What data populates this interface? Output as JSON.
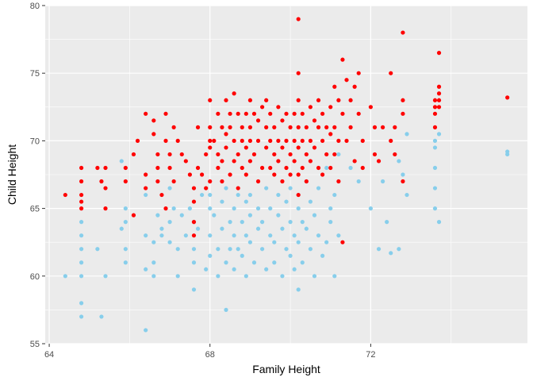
{
  "chart_data": {
    "type": "scatter",
    "xlabel": "Family Height",
    "ylabel": "Child Height",
    "xlim": [
      63.9,
      75.9
    ],
    "ylim": [
      55,
      80
    ],
    "xticks": [
      64,
      68,
      72
    ],
    "yticks": [
      55,
      60,
      65,
      70,
      75,
      80
    ],
    "xtick_labels": [
      "64",
      "68",
      "72"
    ],
    "ytick_labels": [
      "55",
      "60",
      "65",
      "70",
      "75",
      "80"
    ],
    "grid": true,
    "legend": "none",
    "colors": {
      "panel_background": "#ebebeb",
      "grid_line": "#ffffff",
      "series_a": "#87ceeb",
      "series_b": "#ff0000"
    },
    "series": [
      {
        "color": "#87ceeb",
        "points": [
          [
            64.4,
            60
          ],
          [
            64.8,
            58
          ],
          [
            64.8,
            57
          ],
          [
            64.8,
            62
          ],
          [
            64.8,
            61
          ],
          [
            64.8,
            60
          ],
          [
            64.8,
            64
          ],
          [
            64.8,
            63
          ],
          [
            65.2,
            62
          ],
          [
            65.3,
            57
          ],
          [
            65.4,
            60
          ],
          [
            65.8,
            63.5
          ],
          [
            65.8,
            68.5
          ],
          [
            65.9,
            65
          ],
          [
            65.9,
            64
          ],
          [
            65.9,
            62
          ],
          [
            65.9,
            61
          ],
          [
            66.4,
            56
          ],
          [
            66.4,
            66
          ],
          [
            66.4,
            63
          ],
          [
            66.4,
            60.5
          ],
          [
            66.6,
            61
          ],
          [
            66.6,
            60
          ],
          [
            66.6,
            62.5
          ],
          [
            66.7,
            64.5
          ],
          [
            66.8,
            63.5
          ],
          [
            66.8,
            63
          ],
          [
            67,
            64
          ],
          [
            67,
            62.5
          ],
          [
            67,
            66.5
          ],
          [
            67.1,
            65
          ],
          [
            67.2,
            62
          ],
          [
            67.2,
            60
          ],
          [
            67.3,
            64.5
          ],
          [
            67.4,
            63
          ],
          [
            67.5,
            65
          ],
          [
            67.6,
            62
          ],
          [
            67.6,
            64
          ],
          [
            67.6,
            61
          ],
          [
            67.6,
            59
          ],
          [
            67.7,
            63.5
          ],
          [
            67.8,
            66
          ],
          [
            67.9,
            60.5
          ],
          [
            68,
            65
          ],
          [
            68,
            63
          ],
          [
            68,
            61.5
          ],
          [
            68,
            66
          ],
          [
            68.1,
            64.5
          ],
          [
            68.2,
            60
          ],
          [
            68.2,
            62
          ],
          [
            68.3,
            63.5
          ],
          [
            68.3,
            65.5
          ],
          [
            68.4,
            61
          ],
          [
            68.4,
            66.5
          ],
          [
            68.4,
            57.5
          ],
          [
            68.5,
            64
          ],
          [
            68.5,
            62
          ],
          [
            68.6,
            63
          ],
          [
            68.6,
            65
          ],
          [
            68.6,
            60.5
          ],
          [
            68.7,
            66
          ],
          [
            68.7,
            62
          ],
          [
            68.8,
            64
          ],
          [
            68.8,
            61.5
          ],
          [
            68.9,
            65.5
          ],
          [
            68.9,
            63
          ],
          [
            68.9,
            60
          ],
          [
            69,
            64.5
          ],
          [
            69,
            62.5
          ],
          [
            69,
            66
          ],
          [
            69.1,
            61
          ],
          [
            69.2,
            63.5
          ],
          [
            69.2,
            65
          ],
          [
            69.3,
            62
          ],
          [
            69.3,
            64
          ],
          [
            69.4,
            66.5
          ],
          [
            69.4,
            60.5
          ],
          [
            69.5,
            63
          ],
          [
            69.5,
            65
          ],
          [
            69.6,
            62.5
          ],
          [
            69.6,
            61
          ],
          [
            69.7,
            64.5
          ],
          [
            69.7,
            66
          ],
          [
            69.8,
            63.5
          ],
          [
            69.8,
            60
          ],
          [
            69.9,
            65.5
          ],
          [
            69.9,
            62
          ],
          [
            70,
            64
          ],
          [
            70,
            61.5
          ],
          [
            70,
            66.5
          ],
          [
            70.1,
            63
          ],
          [
            70.1,
            60.5
          ],
          [
            70.2,
            62.5
          ],
          [
            70.2,
            65
          ],
          [
            70.2,
            59
          ],
          [
            70.2,
            66
          ],
          [
            70.3,
            61
          ],
          [
            70.3,
            64
          ],
          [
            70.4,
            63.5
          ],
          [
            70.4,
            67
          ],
          [
            70.5,
            62
          ],
          [
            70.5,
            65.5
          ],
          [
            70.6,
            60
          ],
          [
            70.6,
            64.5
          ],
          [
            70.7,
            66.5
          ],
          [
            70.7,
            63
          ],
          [
            70.8,
            61.5
          ],
          [
            70.9,
            62.5
          ],
          [
            70.9,
            68
          ],
          [
            71,
            65
          ],
          [
            71,
            64
          ],
          [
            71.1,
            60
          ],
          [
            71.1,
            66
          ],
          [
            71.2,
            63
          ],
          [
            71.2,
            69
          ],
          [
            71.5,
            68
          ],
          [
            71.7,
            67
          ],
          [
            72,
            65
          ],
          [
            72.2,
            62
          ],
          [
            72.3,
            67
          ],
          [
            72.4,
            64
          ],
          [
            72.5,
            61.7
          ],
          [
            72.7,
            62
          ],
          [
            72.7,
            68.5
          ],
          [
            72.8,
            67.5
          ],
          [
            72.9,
            70.5
          ],
          [
            72.9,
            66
          ],
          [
            73.6,
            66.5
          ],
          [
            73.6,
            68
          ],
          [
            73.6,
            70
          ],
          [
            73.6,
            65
          ],
          [
            73.6,
            69.5
          ],
          [
            73.7,
            64
          ],
          [
            73.7,
            70.5
          ],
          [
            75.4,
            69
          ],
          [
            75.4,
            69.2
          ]
        ]
      },
      {
        "color": "#ff0000",
        "points": [
          [
            64.4,
            66
          ],
          [
            64.8,
            68
          ],
          [
            64.8,
            67
          ],
          [
            64.8,
            66
          ],
          [
            64.8,
            65.5
          ],
          [
            64.8,
            65
          ],
          [
            65.2,
            68
          ],
          [
            65.3,
            67
          ],
          [
            65.4,
            66.5
          ],
          [
            65.4,
            68
          ],
          [
            65.4,
            65
          ],
          [
            65.9,
            68
          ],
          [
            65.9,
            67
          ],
          [
            66.1,
            69
          ],
          [
            66.1,
            64.5
          ],
          [
            66.2,
            70
          ],
          [
            66.4,
            72
          ],
          [
            66.4,
            67.5
          ],
          [
            66.4,
            66.5
          ],
          [
            66.6,
            71.5
          ],
          [
            66.6,
            70.5
          ],
          [
            66.7,
            69
          ],
          [
            66.7,
            68
          ],
          [
            66.7,
            67
          ],
          [
            66.8,
            66
          ],
          [
            66.9,
            72
          ],
          [
            66.9,
            70
          ],
          [
            66.9,
            65
          ],
          [
            67,
            69
          ],
          [
            67,
            68
          ],
          [
            67.1,
            71
          ],
          [
            67.1,
            67
          ],
          [
            67.2,
            70
          ],
          [
            67.3,
            69
          ],
          [
            67.4,
            68.5
          ],
          [
            67.5,
            67.5
          ],
          [
            67.6,
            64
          ],
          [
            67.6,
            66.5
          ],
          [
            67.6,
            65.5
          ],
          [
            67.6,
            63
          ],
          [
            67.7,
            71
          ],
          [
            67.7,
            68
          ],
          [
            67.8,
            67.5
          ],
          [
            67.9,
            69
          ],
          [
            67.9,
            66.5
          ],
          [
            68,
            73
          ],
          [
            68,
            71
          ],
          [
            68,
            70
          ],
          [
            68,
            69.5
          ],
          [
            68,
            67
          ],
          [
            68.1,
            70
          ],
          [
            68.2,
            72
          ],
          [
            68.2,
            69
          ],
          [
            68.2,
            68
          ],
          [
            68.3,
            71
          ],
          [
            68.3,
            68.5
          ],
          [
            68.3,
            67
          ],
          [
            68.4,
            73
          ],
          [
            68.4,
            70.5
          ],
          [
            68.4,
            69.5
          ],
          [
            68.5,
            72
          ],
          [
            68.5,
            71
          ],
          [
            68.5,
            67.5
          ],
          [
            68.6,
            73.5
          ],
          [
            68.6,
            70
          ],
          [
            68.6,
            68.5
          ],
          [
            68.7,
            72
          ],
          [
            68.7,
            69
          ],
          [
            68.7,
            66.5
          ],
          [
            68.8,
            71
          ],
          [
            68.8,
            70
          ],
          [
            68.8,
            68
          ],
          [
            68.9,
            72
          ],
          [
            68.9,
            69.5
          ],
          [
            68.9,
            67.5
          ],
          [
            69,
            73
          ],
          [
            69,
            71
          ],
          [
            69,
            70
          ],
          [
            69,
            68.5
          ],
          [
            69.1,
            72
          ],
          [
            69.1,
            69
          ],
          [
            69.2,
            71.5
          ],
          [
            69.2,
            70
          ],
          [
            69.2,
            67
          ],
          [
            69.3,
            72.5
          ],
          [
            69.3,
            68
          ],
          [
            69.4,
            73
          ],
          [
            69.4,
            71
          ],
          [
            69.4,
            69.5
          ],
          [
            69.5,
            72
          ],
          [
            69.5,
            70
          ],
          [
            69.5,
            68
          ],
          [
            69.6,
            71
          ],
          [
            69.6,
            69
          ],
          [
            69.6,
            67.5
          ],
          [
            69.7,
            72.5
          ],
          [
            69.7,
            70
          ],
          [
            69.7,
            68.5
          ],
          [
            69.8,
            71.5
          ],
          [
            69.8,
            69.5
          ],
          [
            69.8,
            67
          ],
          [
            69.9,
            72
          ],
          [
            69.9,
            70
          ],
          [
            69.9,
            68
          ],
          [
            70,
            71
          ],
          [
            70,
            69
          ],
          [
            70,
            67.5
          ],
          [
            70.1,
            72
          ],
          [
            70.1,
            70
          ],
          [
            70.1,
            68.5
          ],
          [
            70.2,
            79
          ],
          [
            70.2,
            75
          ],
          [
            70.2,
            73
          ],
          [
            70.2,
            71
          ],
          [
            70.2,
            69.5
          ],
          [
            70.2,
            67.5
          ],
          [
            70.2,
            66
          ],
          [
            70.3,
            72
          ],
          [
            70.3,
            70
          ],
          [
            70.3,
            68
          ],
          [
            70.4,
            71
          ],
          [
            70.4,
            69
          ],
          [
            70.4,
            67
          ],
          [
            70.5,
            72.5
          ],
          [
            70.5,
            70
          ],
          [
            70.5,
            68.5
          ],
          [
            70.6,
            71.5
          ],
          [
            70.6,
            69.5
          ],
          [
            70.7,
            73
          ],
          [
            70.7,
            71
          ],
          [
            70.7,
            68
          ],
          [
            70.8,
            72
          ],
          [
            70.8,
            70
          ],
          [
            70.8,
            67.5
          ],
          [
            70.9,
            71
          ],
          [
            70.9,
            69
          ],
          [
            71,
            72.5
          ],
          [
            71,
            70.5
          ],
          [
            71,
            68
          ],
          [
            71.1,
            74
          ],
          [
            71.1,
            71
          ],
          [
            71.1,
            69
          ],
          [
            71.2,
            73
          ],
          [
            71.2,
            70
          ],
          [
            71.2,
            67
          ],
          [
            71.3,
            76
          ],
          [
            71.3,
            72
          ],
          [
            71.3,
            62.5
          ],
          [
            71.4,
            74.5
          ],
          [
            71.4,
            70
          ],
          [
            71.5,
            73
          ],
          [
            71.5,
            71
          ],
          [
            71.6,
            74
          ],
          [
            71.6,
            68.5
          ],
          [
            71.7,
            75
          ],
          [
            71.7,
            72
          ],
          [
            71.8,
            70
          ],
          [
            71.8,
            68
          ],
          [
            72,
            72.5
          ],
          [
            72.1,
            71
          ],
          [
            72.1,
            69
          ],
          [
            72.2,
            68.5
          ],
          [
            72.3,
            71
          ],
          [
            72.5,
            70
          ],
          [
            72.5,
            75
          ],
          [
            72.6,
            71
          ],
          [
            72.6,
            69
          ],
          [
            72.8,
            78
          ],
          [
            72.8,
            72
          ],
          [
            72.8,
            73
          ],
          [
            72.8,
            67
          ],
          [
            73.6,
            73
          ],
          [
            73.6,
            72.5
          ],
          [
            73.6,
            72
          ],
          [
            73.6,
            71
          ],
          [
            73.7,
            76.5
          ],
          [
            73.7,
            74
          ],
          [
            73.7,
            73.5
          ],
          [
            73.7,
            73
          ],
          [
            73.7,
            72.5
          ],
          [
            75.4,
            73.2
          ]
        ]
      }
    ]
  }
}
